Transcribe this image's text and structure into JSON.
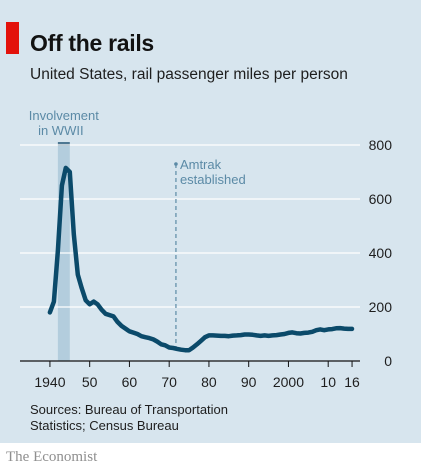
{
  "header": {
    "title": "Off the rails",
    "subtitle": "United States, rail passenger miles per person"
  },
  "footer": {
    "sources": "Sources: Bureau of Transportation Statistics; Census Bureau",
    "brand": "The Economist"
  },
  "colors": {
    "panel": "#d7e5ee",
    "line": "#0b4a6a",
    "accent_red": "#e3120b",
    "annotation": "#5b8aa6",
    "wwii_band": "#b3cddd"
  },
  "chart_data": {
    "type": "line",
    "title": "Off the rails",
    "subtitle": "United States, rail passenger miles per person",
    "xlabel": "",
    "ylabel": "",
    "xlim": [
      1937,
      2018
    ],
    "ylim": [
      0,
      800
    ],
    "x_ticks": [
      1940,
      1950,
      1960,
      1970,
      1980,
      1990,
      2000,
      2010,
      2016
    ],
    "x_tick_labels": [
      "1940",
      "50",
      "60",
      "70",
      "80",
      "90",
      "2000",
      "10",
      "16"
    ],
    "y_ticks": [
      0,
      200,
      400,
      600,
      800
    ],
    "y_tick_labels": [
      "0",
      "200",
      "400",
      "600",
      "800"
    ],
    "grid": "horizontal",
    "y_axis_position": "right",
    "annotations": [
      {
        "kind": "band",
        "x_start": 1942,
        "x_end": 1945,
        "label": "Involvement in WWII"
      },
      {
        "kind": "vline",
        "x": 1971.7,
        "label": "Amtrak established"
      }
    ],
    "series": [
      {
        "name": "",
        "x": [
          1940,
          1941,
          1942,
          1943,
          1944,
          1945,
          1946,
          1947,
          1948,
          1949,
          1950,
          1951,
          1952,
          1953,
          1954,
          1955,
          1956,
          1957,
          1958,
          1959,
          1960,
          1961,
          1962,
          1963,
          1964,
          1965,
          1966,
          1967,
          1968,
          1969,
          1970,
          1971,
          1972,
          1973,
          1974,
          1975,
          1976,
          1977,
          1978,
          1979,
          1980,
          1981,
          1982,
          1983,
          1984,
          1985,
          1986,
          1987,
          1988,
          1989,
          1990,
          1991,
          1992,
          1993,
          1994,
          1995,
          1996,
          1997,
          1998,
          1999,
          2000,
          2001,
          2002,
          2003,
          2004,
          2005,
          2006,
          2007,
          2008,
          2009,
          2010,
          2011,
          2012,
          2013,
          2014,
          2015,
          2016
        ],
        "values": [
          180,
          220,
          410,
          650,
          715,
          700,
          470,
          320,
          270,
          225,
          210,
          220,
          210,
          190,
          175,
          170,
          165,
          145,
          130,
          120,
          110,
          105,
          100,
          92,
          88,
          85,
          80,
          72,
          62,
          58,
          50,
          48,
          45,
          42,
          40,
          40,
          50,
          62,
          75,
          88,
          95,
          95,
          94,
          93,
          93,
          92,
          94,
          95,
          96,
          98,
          98,
          97,
          95,
          93,
          95,
          93,
          95,
          96,
          98,
          100,
          104,
          106,
          103,
          102,
          104,
          105,
          108,
          114,
          117,
          114,
          117,
          118,
          121,
          122,
          120,
          119,
          119
        ]
      }
    ]
  }
}
